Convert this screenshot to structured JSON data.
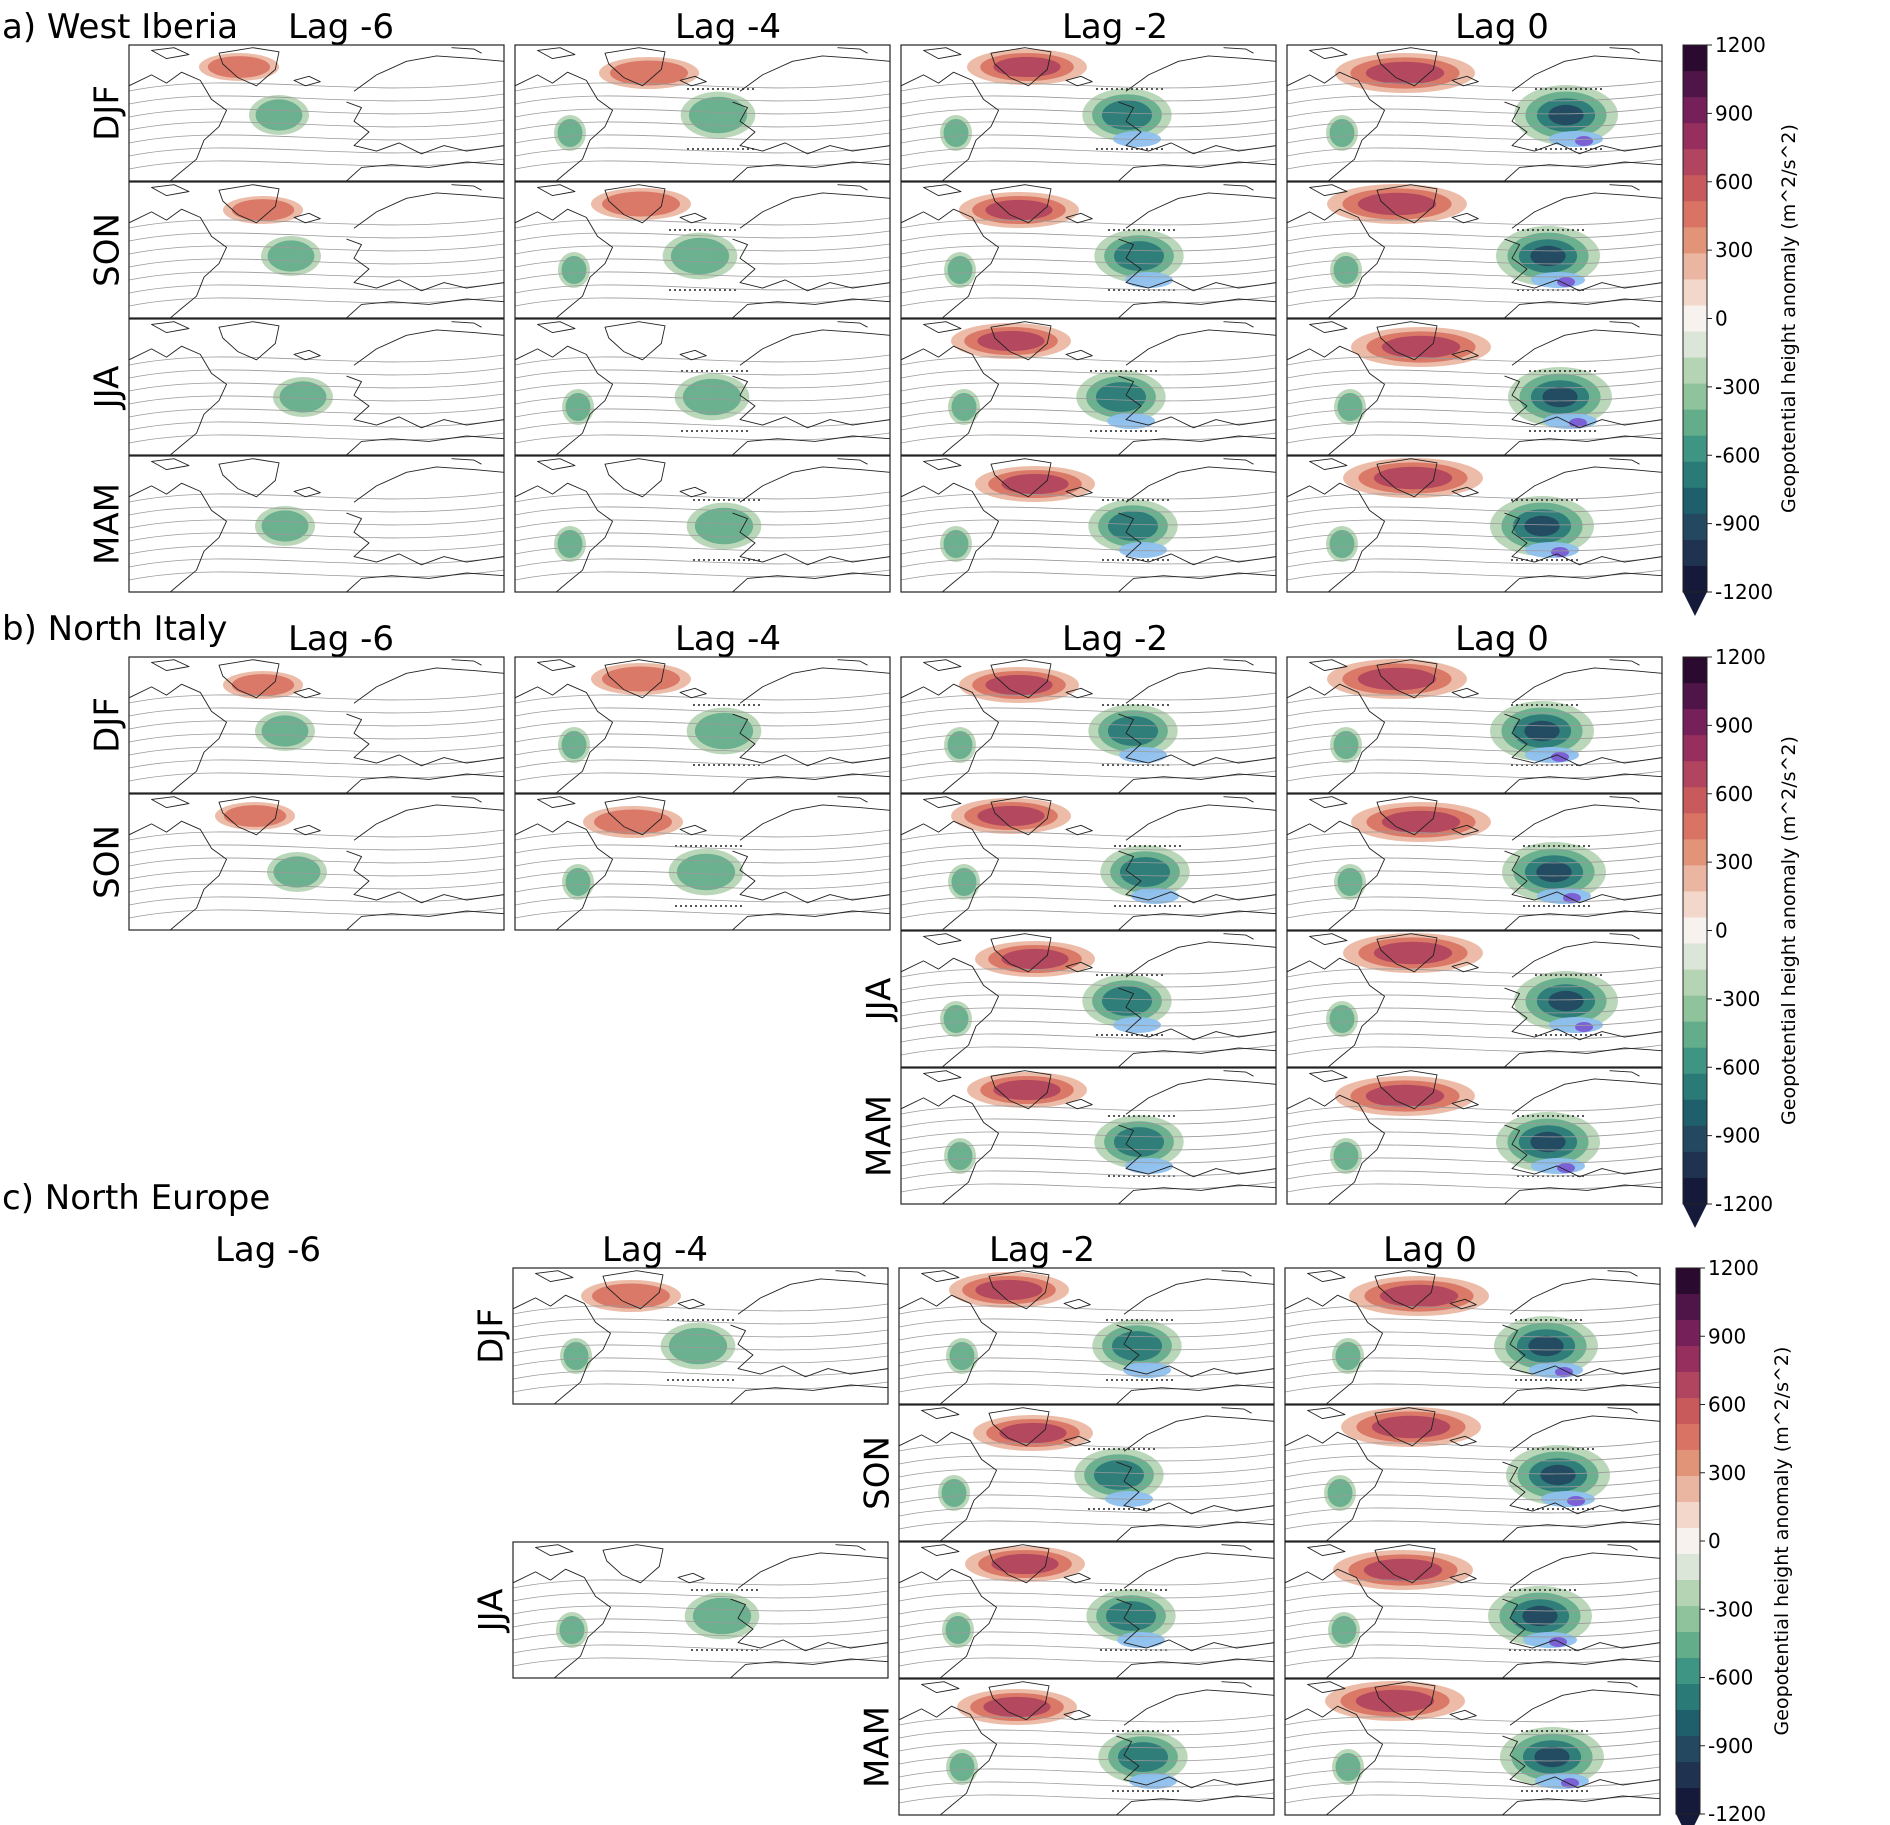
{
  "chart_data": {
    "type": "heatmap",
    "description_units": "m^2/s^2",
    "colorbar": {
      "label": "Geopotential height anomaly (m^2/s^2)",
      "ticks": [
        "1200",
        "900",
        "600",
        "300",
        "0",
        "-300",
        "-600",
        "-900",
        "-1200"
      ],
      "range": [
        -1200,
        1200
      ],
      "extend": "min",
      "colors": [
        "#151a3a",
        "#1f3250",
        "#23485f",
        "#1f5f6b",
        "#2a7a78",
        "#3f9583",
        "#64ad8b",
        "#8fc39b",
        "#b5d4b3",
        "#dce6d8",
        "#f7f2ee",
        "#f3d7ca",
        "#eab6a1",
        "#e29479",
        "#d97363",
        "#c85a5c",
        "#b1445e",
        "#962f5e",
        "#76205a",
        "#4f1448",
        "#2a0a2f"
      ]
    },
    "panels": [
      {
        "id": "a",
        "title": "a) West Iberia",
        "lags": [
          "Lag -6",
          "Lag -4",
          "Lag -2",
          "Lag 0"
        ],
        "seasons": [
          "DJF",
          "SON",
          "JJA",
          "MAM"
        ],
        "present": [
          [
            1,
            1,
            1,
            1
          ],
          [
            1,
            1,
            1,
            1
          ],
          [
            1,
            1,
            1,
            1
          ],
          [
            1,
            1,
            1,
            1
          ]
        ]
      },
      {
        "id": "b",
        "title": "b) North Italy",
        "lags": [
          "Lag -6",
          "Lag -4",
          "Lag -2",
          "Lag 0"
        ],
        "seasons": [
          "DJF",
          "SON",
          "JJA",
          "MAM"
        ],
        "present": [
          [
            1,
            1,
            1,
            1
          ],
          [
            1,
            1,
            1,
            1
          ],
          [
            0,
            0,
            1,
            1
          ],
          [
            0,
            0,
            1,
            1
          ]
        ]
      },
      {
        "id": "c",
        "title": "c) North Europe",
        "lags": [
          "Lag -6",
          "Lag -4",
          "Lag -2",
          "Lag 0"
        ],
        "seasons": [
          "DJF",
          "SON",
          "JJA",
          "MAM"
        ],
        "present": [
          [
            0,
            1,
            1,
            1
          ],
          [
            0,
            0,
            1,
            1
          ],
          [
            0,
            1,
            1,
            1
          ],
          [
            0,
            0,
            1,
            1
          ]
        ]
      }
    ]
  }
}
